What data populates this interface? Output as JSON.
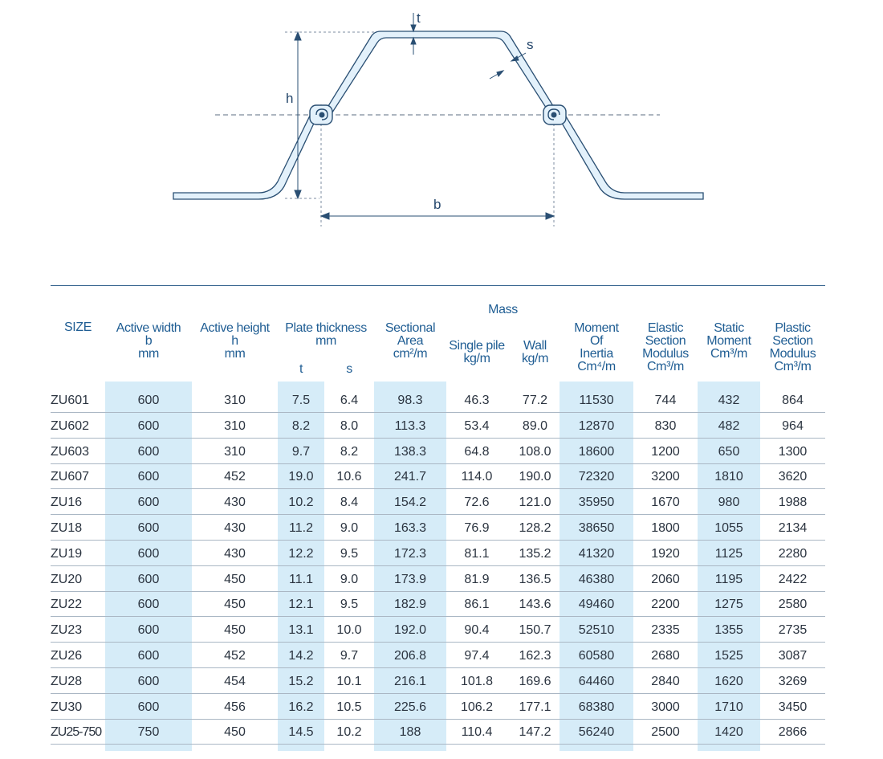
{
  "diagram": {
    "labels": {
      "t": "t",
      "s": "s",
      "h": "h",
      "b": "b"
    },
    "colors": {
      "fill": "#e3f1fb",
      "stroke": "#2a4f73",
      "dash": "#5b6e82"
    }
  },
  "table": {
    "headers": {
      "size": "SIZE",
      "active_width": [
        "Active width",
        "b",
        "mm"
      ],
      "active_height": [
        "Active height",
        "h",
        "mm"
      ],
      "plate_thickness": [
        "Plate thickness",
        "mm"
      ],
      "plate_t": "t",
      "plate_s": "s",
      "sectional_area": [
        "Sectional",
        "Area",
        "cm²/m"
      ],
      "mass": "Mass",
      "single_pile": [
        "Single pile",
        "kg/m"
      ],
      "wall": [
        "Wall",
        "kg/m"
      ],
      "moment_inertia": [
        "Moment",
        "Of",
        "Inertia",
        "Cm⁴/m"
      ],
      "elastic": [
        "Elastic",
        "Section",
        "Modulus",
        "Cm³/m"
      ],
      "static": [
        "Static",
        "Moment",
        "Cm³/m"
      ],
      "plastic": [
        "Plastic",
        "Section",
        "Modulus",
        "Cm³/m"
      ]
    },
    "rows": [
      [
        "ZU601",
        "600",
        "310",
        "7.5",
        "6.4",
        "98.3",
        "46.3",
        "77.2",
        "11530",
        "744",
        "432",
        "864"
      ],
      [
        "ZU602",
        "600",
        "310",
        "8.2",
        "8.0",
        "113.3",
        "53.4",
        "89.0",
        "12870",
        "830",
        "482",
        "964"
      ],
      [
        "ZU603",
        "600",
        "310",
        "9.7",
        "8.2",
        "138.3",
        "64.8",
        "108.0",
        "18600",
        "1200",
        "650",
        "1300"
      ],
      [
        "ZU607",
        "600",
        "452",
        "19.0",
        "10.6",
        "241.7",
        "114.0",
        "190.0",
        "72320",
        "3200",
        "1810",
        "3620"
      ],
      [
        "ZU16",
        "600",
        "430",
        "10.2",
        "8.4",
        "154.2",
        "72.6",
        "121.0",
        "35950",
        "1670",
        "980",
        "1988"
      ],
      [
        "ZU18",
        "600",
        "430",
        "11.2",
        "9.0",
        "163.3",
        "76.9",
        "128.2",
        "38650",
        "1800",
        "1055",
        "2134"
      ],
      [
        "ZU19",
        "600",
        "430",
        "12.2",
        "9.5",
        "172.3",
        "81.1",
        "135.2",
        "41320",
        "1920",
        "1125",
        "2280"
      ],
      [
        "ZU20",
        "600",
        "450",
        "11.1",
        "9.0",
        "173.9",
        "81.9",
        "136.5",
        "46380",
        "2060",
        "1195",
        "2422"
      ],
      [
        "ZU22",
        "600",
        "450",
        "12.1",
        "9.5",
        "182.9",
        "86.1",
        "143.6",
        "49460",
        "2200",
        "1275",
        "2580"
      ],
      [
        "ZU23",
        "600",
        "450",
        "13.1",
        "10.0",
        "192.0",
        "90.4",
        "150.7",
        "52510",
        "2335",
        "1355",
        "2735"
      ],
      [
        "ZU26",
        "600",
        "452",
        "14.2",
        "9.7",
        "206.8",
        "97.4",
        "162.3",
        "60580",
        "2680",
        "1525",
        "3087"
      ],
      [
        "ZU28",
        "600",
        "454",
        "15.2",
        "10.1",
        "216.1",
        "101.8",
        "169.6",
        "64460",
        "2840",
        "1620",
        "3269"
      ],
      [
        "ZU30",
        "600",
        "456",
        "16.2",
        "10.5",
        "225.6",
        "106.2",
        "177.1",
        "68380",
        "3000",
        "1710",
        "3450"
      ],
      [
        "ZU25-750",
        "750",
        "450",
        "14.5",
        "10.2",
        "188",
        "110.4",
        "147.2",
        "56240",
        "2500",
        "1420",
        "2866"
      ]
    ]
  }
}
